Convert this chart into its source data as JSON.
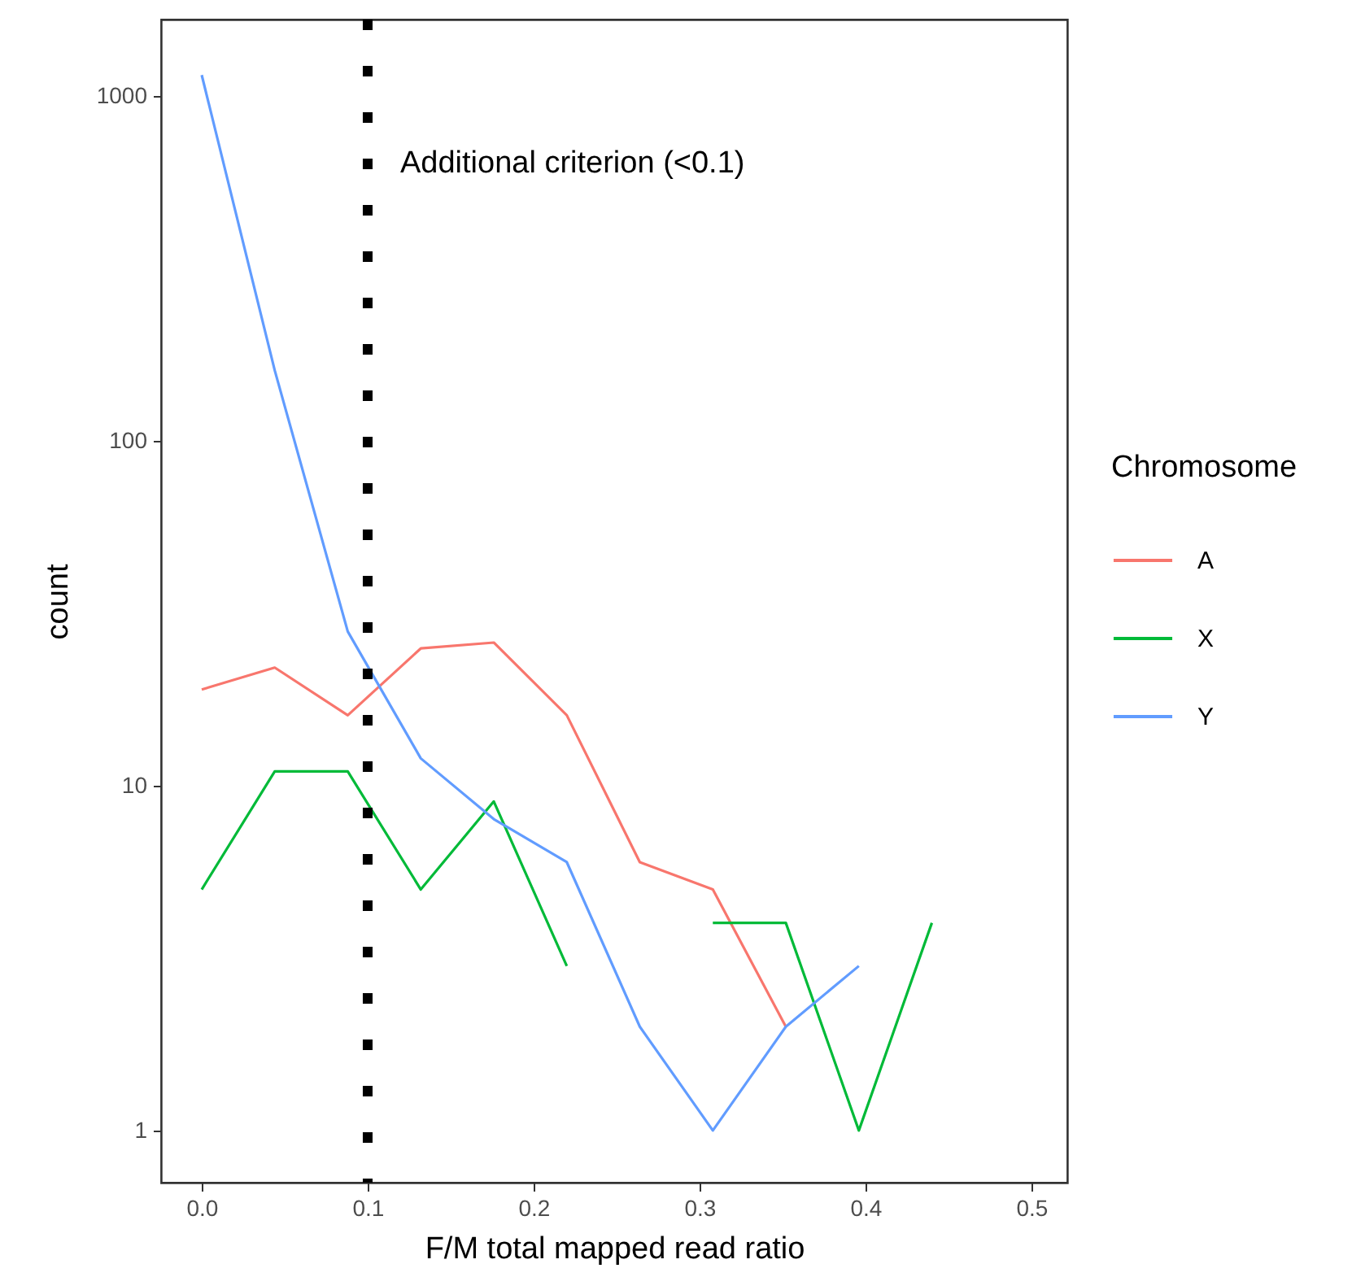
{
  "chart_data": {
    "type": "line",
    "xlabel": "F/M total mapped read ratio",
    "ylabel": "count",
    "legend_title": "Chromosome",
    "x": [
      0,
      0.044,
      0.088,
      0.132,
      0.176,
      0.22,
      0.264,
      0.308,
      0.352,
      0.396,
      0.44
    ],
    "series": [
      {
        "name": "A",
        "color": "#f8766d",
        "values": [
          19,
          22,
          16,
          25,
          26,
          16,
          6,
          5,
          2,
          null,
          null
        ]
      },
      {
        "name": "X",
        "color": "#00ba38",
        "values": [
          5,
          11,
          11,
          5,
          9,
          3,
          null,
          4,
          4,
          1,
          4
        ]
      },
      {
        "name": "Y",
        "color": "#619cff",
        "values": [
          1150,
          160,
          28,
          12,
          8,
          6,
          2,
          1,
          2,
          3,
          null
        ]
      }
    ],
    "log": "y",
    "xlim": [
      -0.0245,
      0.5216
    ],
    "xticks": [
      {
        "value": 0,
        "label": "0.0"
      },
      0.1,
      0.2,
      0.3,
      0.4,
      0.5
    ],
    "ylim": [
      0.706,
      1666
    ],
    "yticks": [
      1,
      10,
      100,
      1000
    ],
    "ref_lines": [
      {
        "axis": "x",
        "value": 0.1,
        "label": "Additional criterion (<0.1)",
        "color": "#000000",
        "line_style": "dotted"
      }
    ],
    "grid": false,
    "legend": "right",
    "marker": "none",
    "line_style": "solid"
  }
}
